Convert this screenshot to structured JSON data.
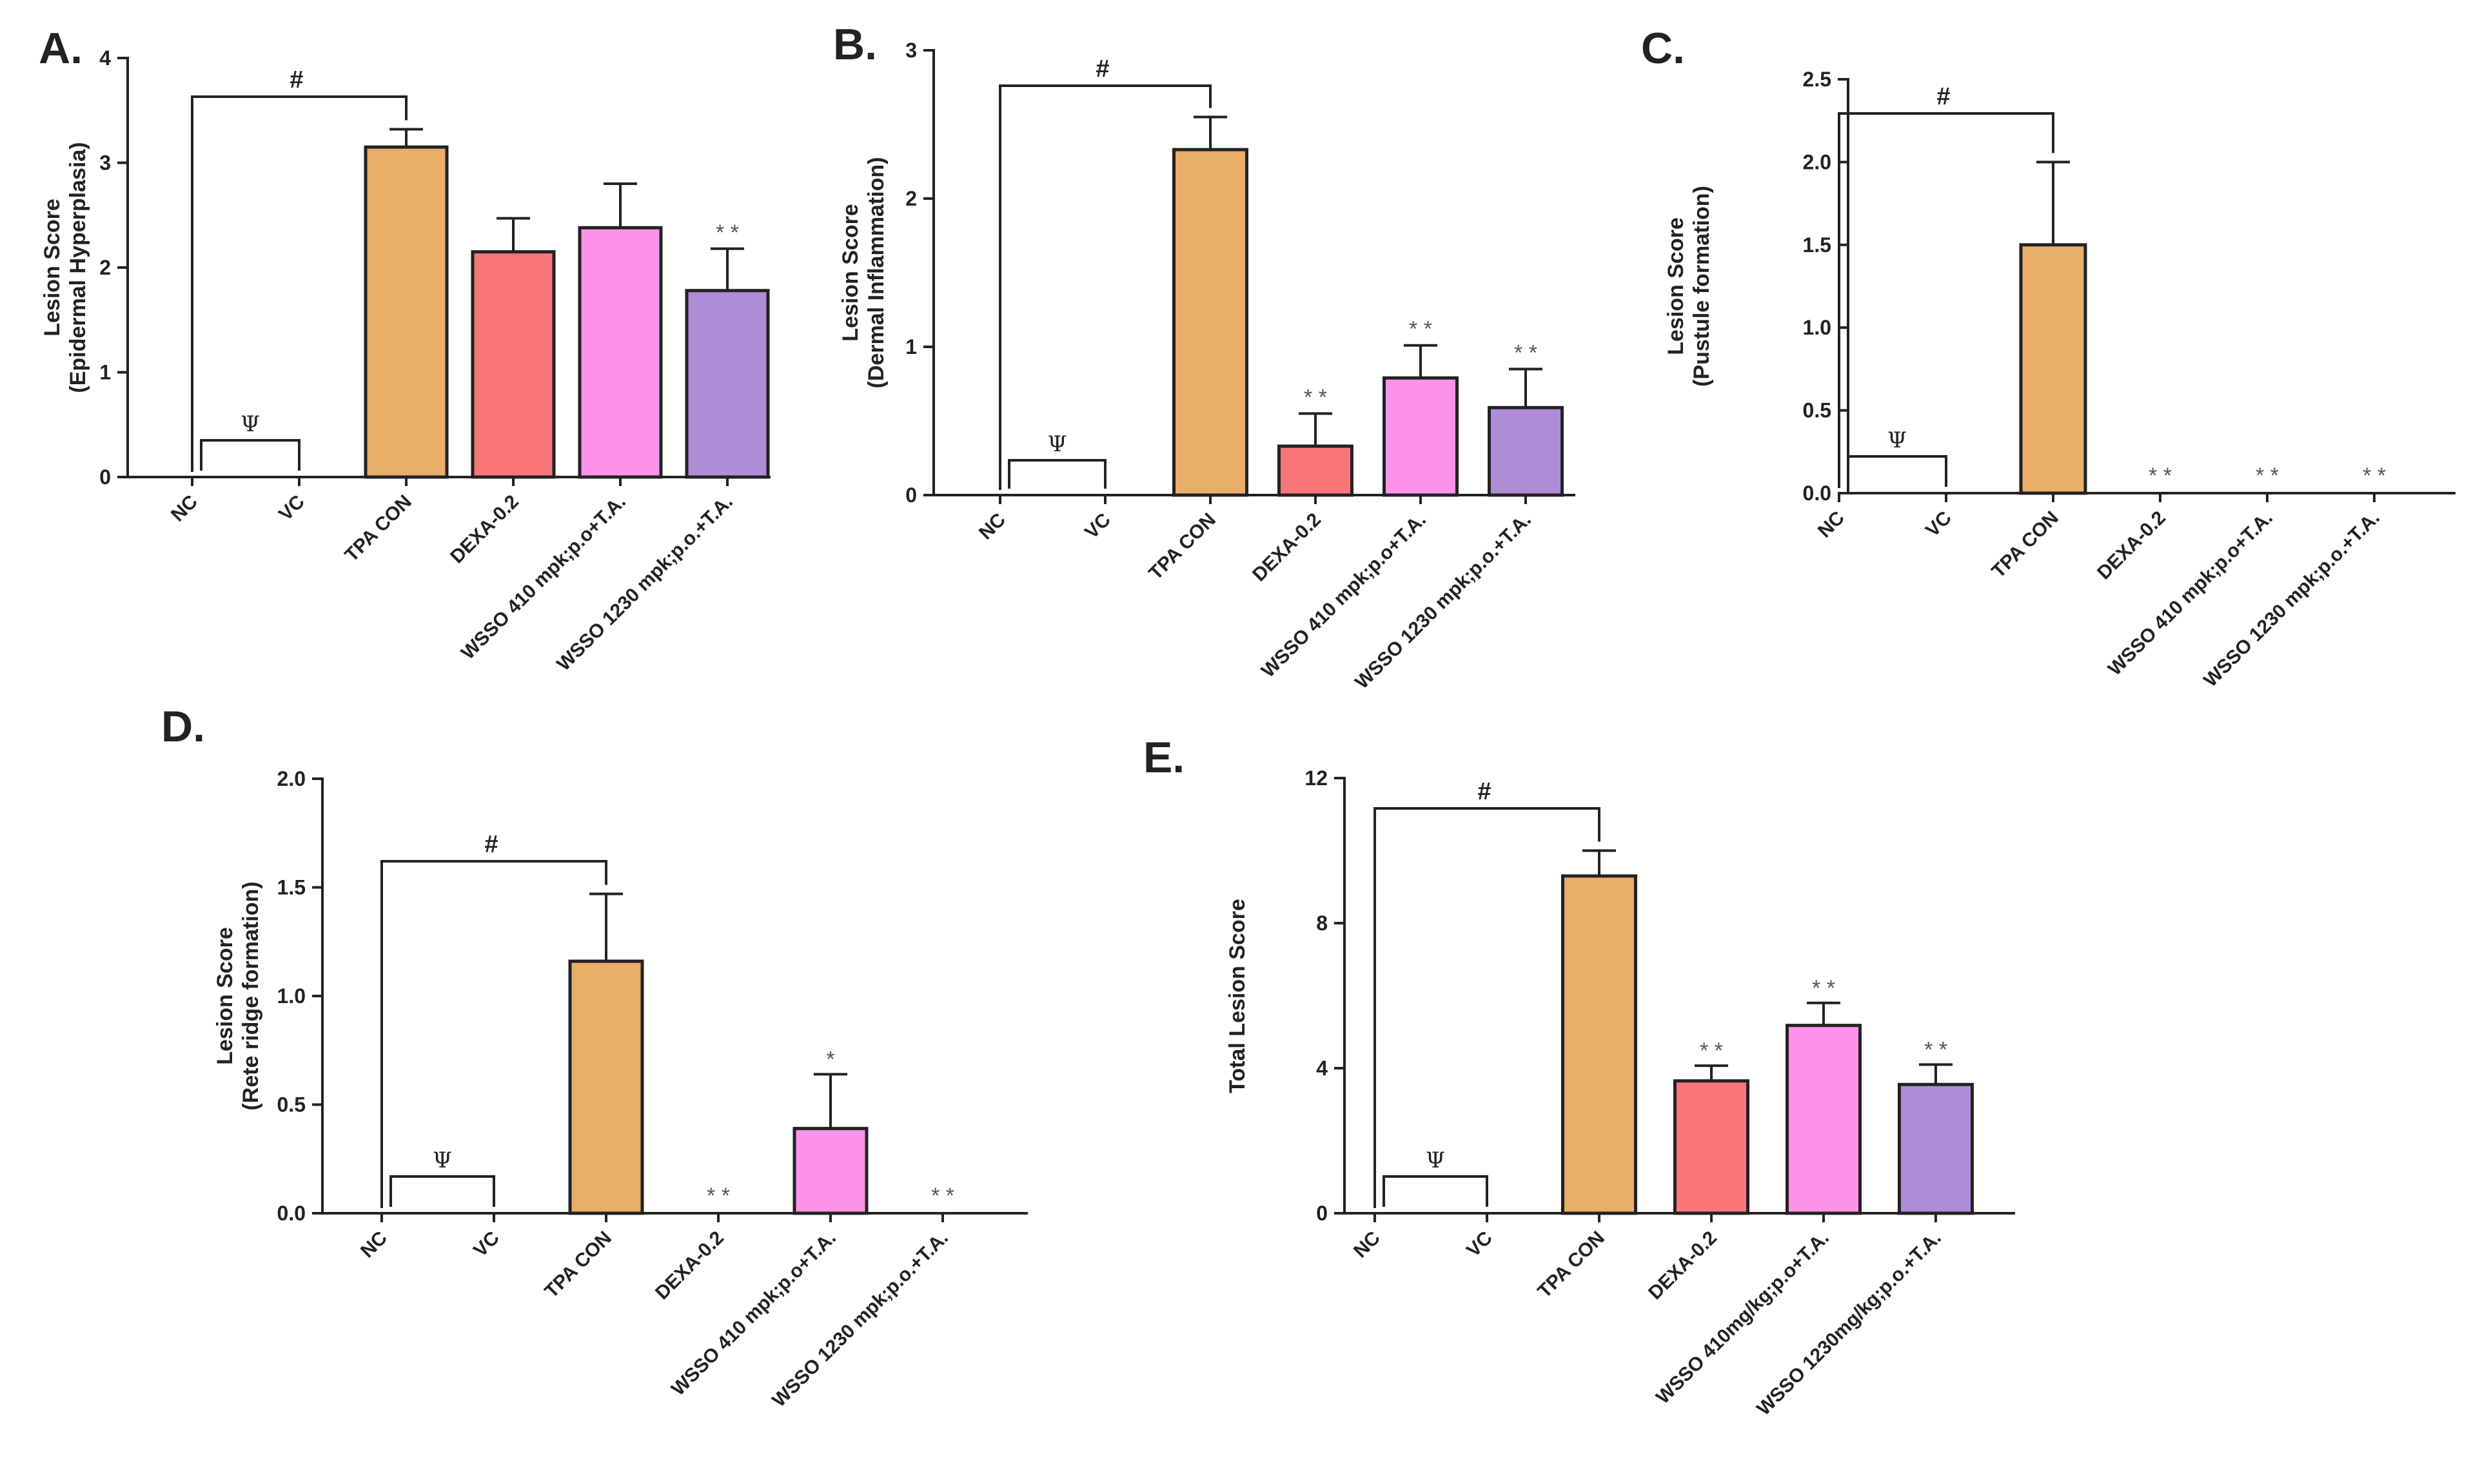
{
  "chart_data": [
    {
      "id": "A",
      "panel_label": "A.",
      "type": "bar",
      "title": "",
      "ylabel_lines": [
        "Lesion Score",
        "(Epidermal Hyperplasia)"
      ],
      "xlabel": "",
      "ylim": [
        0,
        4
      ],
      "yticks": [
        "0",
        "1",
        "2",
        "3",
        "4"
      ],
      "categories": [
        "NC",
        "VC",
        "TPA CON",
        "DEXA-0.2",
        "WSSO 410 mpk;p.o+T.A.",
        "WSSO 1230 mpk;p.o.+T.A."
      ],
      "values": [
        0,
        0,
        3.15,
        2.15,
        2.38,
        1.78
      ],
      "errors": [
        0,
        0,
        0.17,
        0.32,
        0.42,
        0.4
      ],
      "colors": [
        "#E9AE68",
        "#E9AE68",
        "#E9AE68",
        "#F8767A",
        "#FC93E8",
        "#AE8CD6"
      ],
      "significance": [
        "",
        "",
        "",
        "",
        "",
        "**"
      ],
      "bracket_label": "#",
      "psi_label": "Ψ",
      "grid": false
    },
    {
      "id": "B",
      "panel_label": "B.",
      "type": "bar",
      "title": "",
      "ylabel_lines": [
        "Lesion Score",
        "(Dermal Inflammation)"
      ],
      "xlabel": "",
      "ylim": [
        0,
        3
      ],
      "yticks": [
        "0",
        "1",
        "2",
        "3"
      ],
      "categories": [
        "NC",
        "VC",
        "TPA CON",
        "DEXA-0.2",
        "WSSO 410 mpk;p.o+T.A.",
        "WSSO 1230 mpk;p.o.+T.A."
      ],
      "values": [
        0,
        0,
        2.33,
        0.33,
        0.79,
        0.59
      ],
      "errors": [
        0,
        0,
        0.22,
        0.22,
        0.22,
        0.26
      ],
      "colors": [
        "#E9AE68",
        "#E9AE68",
        "#E9AE68",
        "#F8767A",
        "#FC93E8",
        "#AE8CD6"
      ],
      "significance": [
        "",
        "",
        "",
        "**",
        "**",
        "**"
      ],
      "bracket_label": "#",
      "psi_label": "Ψ",
      "grid": false
    },
    {
      "id": "C",
      "panel_label": "C.",
      "type": "bar",
      "title": "",
      "ylabel_lines": [
        "Lesion Score",
        "(Pustule formation)"
      ],
      "xlabel": "",
      "ylim": [
        0,
        2.5
      ],
      "yticks": [
        "0.0",
        "0.5",
        "1.0",
        "1.5",
        "2.0",
        "2.5"
      ],
      "categories": [
        "NC",
        "VC",
        "TPA CON",
        "DEXA-0.2",
        "WSSO 410 mpk;p.o+T.A.",
        "WSSO 1230 mpk;p.o.+T.A."
      ],
      "values": [
        0,
        0,
        1.5,
        0,
        0,
        0
      ],
      "errors": [
        0,
        0,
        0.5,
        0,
        0,
        0
      ],
      "colors": [
        "#E9AE68",
        "#E9AE68",
        "#E9AE68",
        "#F8767A",
        "#FC93E8",
        "#AE8CD6"
      ],
      "significance": [
        "",
        "",
        "",
        "**",
        "**",
        "**"
      ],
      "bracket_label": "#",
      "psi_label": "Ψ",
      "grid": false
    },
    {
      "id": "D",
      "panel_label": "D.",
      "type": "bar",
      "title": "",
      "ylabel_lines": [
        "Lesion Score",
        "(Rete ridge formation)"
      ],
      "xlabel": "",
      "ylim": [
        0,
        2
      ],
      "yticks": [
        "0.0",
        "0.5",
        "1.0",
        "1.5",
        "2.0"
      ],
      "categories": [
        "NC",
        "VC",
        "TPA CON",
        "DEXA-0.2",
        "WSSO 410 mpk;p.o+T.A.",
        "WSSO 1230 mpk;p.o.+T.A."
      ],
      "values": [
        0,
        0,
        1.16,
        0,
        0.39,
        0
      ],
      "errors": [
        0,
        0,
        0.31,
        0,
        0.25,
        0
      ],
      "colors": [
        "#E9AE68",
        "#E9AE68",
        "#E9AE68",
        "#F8767A",
        "#FC93E8",
        "#AE8CD6"
      ],
      "significance": [
        "",
        "",
        "",
        "**",
        "*",
        "**"
      ],
      "bracket_label": "#",
      "psi_label": "Ψ",
      "grid": false
    },
    {
      "id": "E",
      "panel_label": "E.",
      "type": "bar",
      "title": "",
      "ylabel_lines": [
        "Total Lesion Score"
      ],
      "xlabel": "",
      "ylim": [
        0,
        12
      ],
      "yticks": [
        "0",
        "4",
        "8",
        "12"
      ],
      "categories": [
        "NC",
        "VC",
        "TPA CON",
        "DEXA-0.2",
        "WSSO 410mg/kg;p.o+T.A.",
        "WSSO 1230mg/kg;p.o.+T.A."
      ],
      "values": [
        0,
        0,
        9.3,
        3.65,
        5.18,
        3.55
      ],
      "errors": [
        0,
        0,
        0.7,
        0.42,
        0.62,
        0.55
      ],
      "colors": [
        "#E9AE68",
        "#E9AE68",
        "#E9AE68",
        "#F8767A",
        "#FC93E8",
        "#AE8CD6"
      ],
      "significance": [
        "",
        "",
        "",
        "**",
        "**",
        "**"
      ],
      "bracket_label": "#",
      "psi_label": "Ψ",
      "grid": false
    }
  ]
}
